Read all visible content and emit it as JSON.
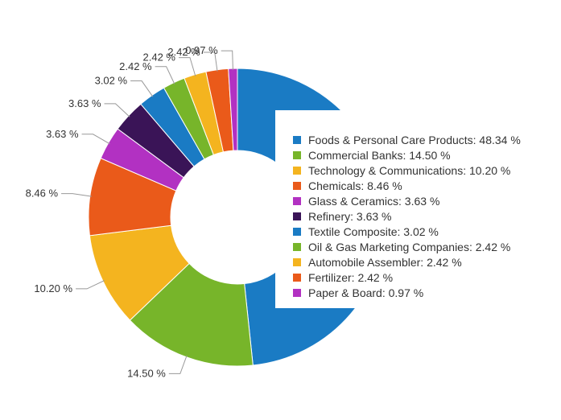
{
  "chart_data": {
    "type": "pie",
    "variant": "donut",
    "legend_position": "right",
    "slices": [
      {
        "label": "Foods & Personal Care Products",
        "value": 48.34,
        "display": "48.34 %",
        "color": "#1a7bc4"
      },
      {
        "label": "Commercial Banks",
        "value": 14.5,
        "display": "14.50 %",
        "color": "#77b52a"
      },
      {
        "label": "Technology & Communications",
        "value": 10.2,
        "display": "10.20 %",
        "color": "#f4b41f"
      },
      {
        "label": "Chemicals",
        "value": 8.46,
        "display": "8.46 %",
        "color": "#ea5a1a"
      },
      {
        "label": "Glass & Ceramics",
        "value": 3.63,
        "display": "3.63 %",
        "color": "#b231c2"
      },
      {
        "label": "Refinery",
        "value": 3.63,
        "display": "3.63 %",
        "color": "#3a1457"
      },
      {
        "label": "Textile Composite",
        "value": 3.02,
        "display": "3.02 %",
        "color": "#1a7bc4"
      },
      {
        "label": "Oil & Gas Marketing Companies",
        "value": 2.42,
        "display": "2.42 %",
        "color": "#77b52a"
      },
      {
        "label": "Automobile Assembler",
        "value": 2.42,
        "display": "2.42 %",
        "color": "#f4b41f"
      },
      {
        "label": "Fertilizer",
        "value": 2.42,
        "display": "2.42 %",
        "color": "#ea5a1a"
      },
      {
        "label": "Paper & Board",
        "value": 0.97,
        "display": "0.97 %",
        "color": "#b231c2"
      }
    ]
  }
}
